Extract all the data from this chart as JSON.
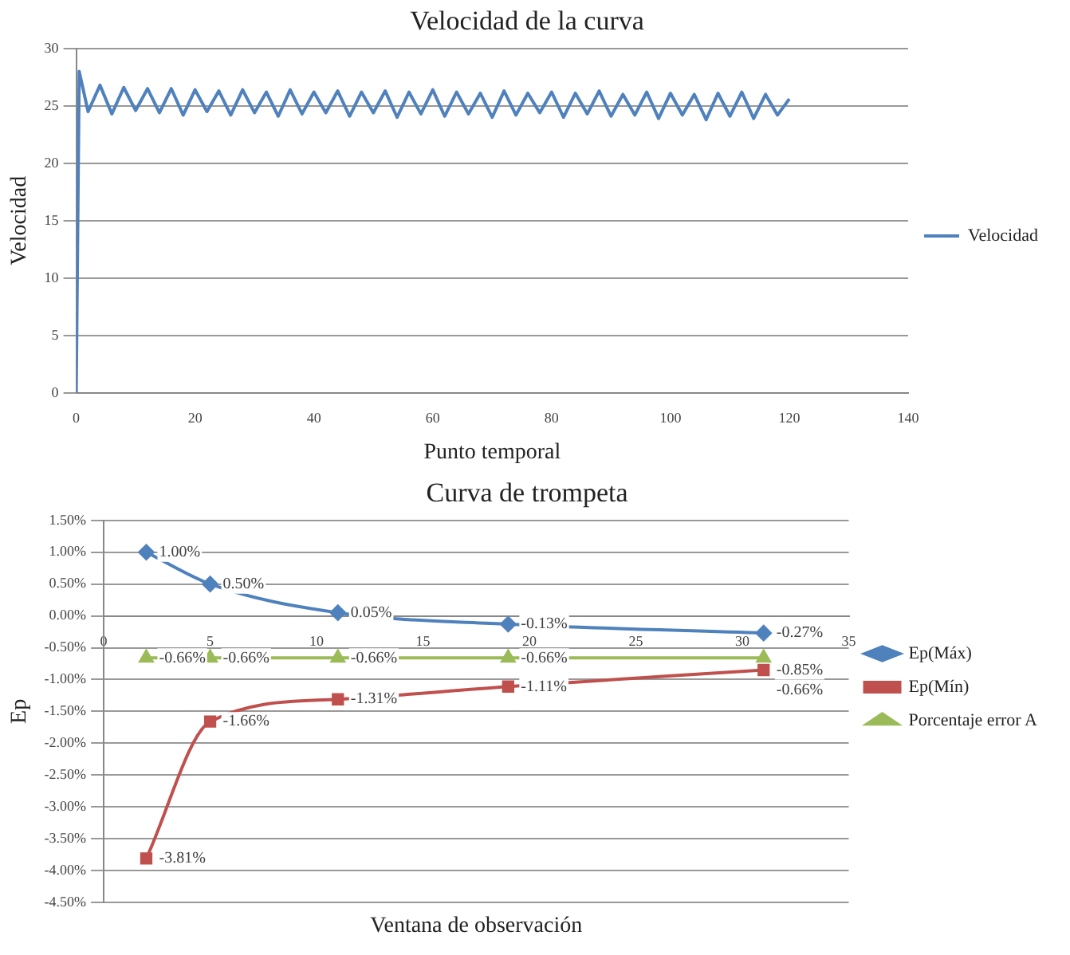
{
  "chart_data": [
    {
      "type": "line",
      "title": "Velocidad de la curva",
      "xlabel": "Punto temporal",
      "ylabel": "Velocidad",
      "legend": "right",
      "grid": "y",
      "marker": "none",
      "xlim": [
        0,
        140
      ],
      "xticks": [
        0,
        20,
        40,
        60,
        80,
        100,
        120,
        140
      ],
      "ylim": [
        0,
        30
      ],
      "yticks": [
        0,
        5,
        10,
        15,
        20,
        25,
        30
      ],
      "series": [
        {
          "name": "Velocidad",
          "color": "#4f81bd",
          "x": [
            0,
            0.5,
            2,
            4,
            6,
            8,
            10,
            12,
            14,
            16,
            18,
            20,
            22,
            24,
            26,
            28,
            30,
            32,
            34,
            36,
            38,
            40,
            42,
            44,
            46,
            48,
            50,
            52,
            54,
            56,
            58,
            60,
            62,
            64,
            66,
            68,
            70,
            72,
            74,
            76,
            78,
            80,
            82,
            84,
            86,
            88,
            90,
            92,
            94,
            96,
            98,
            100,
            102,
            104,
            106,
            108,
            110,
            112,
            114,
            116,
            118,
            120
          ],
          "values": [
            0,
            28,
            24.5,
            26.8,
            24.3,
            26.6,
            24.6,
            26.5,
            24.4,
            26.5,
            24.2,
            26.4,
            24.5,
            26.3,
            24.2,
            26.4,
            24.4,
            26.2,
            24.1,
            26.4,
            24.3,
            26.2,
            24.4,
            26.3,
            24.1,
            26.2,
            24.4,
            26.3,
            24.0,
            26.2,
            24.3,
            26.4,
            24.1,
            26.2,
            24.3,
            26.1,
            24.0,
            26.3,
            24.2,
            26.1,
            24.4,
            26.2,
            24.0,
            26.1,
            24.3,
            26.3,
            24.1,
            26.0,
            24.2,
            26.2,
            23.9,
            26.1,
            24.2,
            26.0,
            23.8,
            26.1,
            24.1,
            26.2,
            23.9,
            26.0,
            24.2,
            25.6
          ]
        }
      ]
    },
    {
      "type": "line",
      "title": "Curva de trompeta",
      "xlabel": "Ventana de observación",
      "ylabel": "Ep",
      "legend": "right",
      "grid": "y",
      "xlim": [
        0,
        35
      ],
      "xticks": [
        0,
        5,
        10,
        15,
        20,
        25,
        30,
        35
      ],
      "ylim": [
        -4.5,
        1.5
      ],
      "yticks": [
        {
          "value": -4.5,
          "label": "-4.50%"
        },
        {
          "value": -4,
          "label": "-4.00%"
        },
        {
          "value": -3.5,
          "label": "-3.50%"
        },
        {
          "value": -3,
          "label": "-3.00%"
        },
        {
          "value": -2.5,
          "label": "-2.50%"
        },
        {
          "value": -2,
          "label": "-2.00%"
        },
        {
          "value": -1.5,
          "label": "-1.50%"
        },
        {
          "value": -1,
          "label": "-1.00%"
        },
        {
          "value": -0.5,
          "label": "-0.50%"
        },
        {
          "value": 0,
          "label": "0.00%"
        },
        {
          "value": 0.5,
          "label": "0.50%"
        },
        {
          "value": 1,
          "label": "1.00%"
        },
        {
          "value": 1.5,
          "label": "1.50%"
        }
      ],
      "series": [
        {
          "name": "Ep(Máx)",
          "color": "#4f81bd",
          "marker": "diamond",
          "x": [
            2,
            5,
            11,
            19,
            31
          ],
          "values": [
            1.0,
            0.5,
            0.05,
            -0.13,
            -0.27
          ],
          "value_labels": [
            "1.00%",
            "0.50%",
            "0.05%",
            "-0.13%",
            "-0.27%"
          ]
        },
        {
          "name": "Ep(Mín)",
          "color": "#c0504d",
          "marker": "square",
          "x": [
            2,
            5,
            11,
            19,
            31
          ],
          "values": [
            -3.81,
            -1.66,
            -1.31,
            -1.11,
            -0.85
          ],
          "value_labels": [
            "-3.81%",
            "-1.66%",
            "-1.31%",
            "-1.11%",
            "-0.85%"
          ]
        },
        {
          "name": "Porcentaje error A",
          "color": "#9bbb59",
          "marker": "triangle",
          "x": [
            2,
            5,
            11,
            19,
            31
          ],
          "values": [
            -0.66,
            -0.66,
            -0.66,
            -0.66,
            -0.66
          ],
          "value_labels": [
            "-0.66%",
            "-0.66%",
            "-0.66%",
            "-0.66%",
            "-0.66%"
          ]
        }
      ]
    }
  ]
}
